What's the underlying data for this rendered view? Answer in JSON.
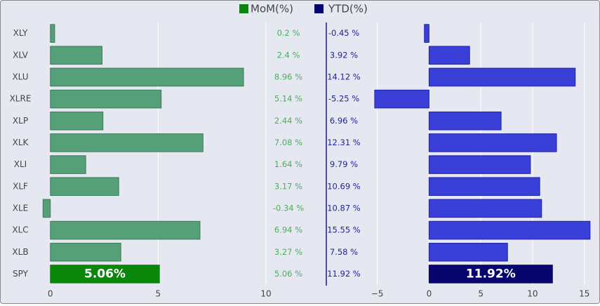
{
  "chart_data": {
    "type": "bar",
    "orientation": "horizontal",
    "categories": [
      "SPY",
      "XLB",
      "XLC",
      "XLE",
      "XLF",
      "XLI",
      "XLK",
      "XLP",
      "XLRE",
      "XLU",
      "XLV",
      "XLY"
    ],
    "series": [
      {
        "name": "MoM(%)",
        "values": [
          5.06,
          3.27,
          6.94,
          -0.34,
          3.17,
          1.64,
          7.08,
          2.44,
          5.14,
          8.96,
          2.4,
          0.2
        ],
        "labels": [
          "5.06 %",
          "3.27 %",
          "6.94 %",
          "-0.34 %",
          "3.17 %",
          "1.64 %",
          "7.08 %",
          "2.44 %",
          "5.14 %",
          "8.96 %",
          "2.4 %",
          "0.2 %"
        ],
        "color": "#55a079",
        "highlight_color": "#0a860a",
        "highlight_label": "5.06%",
        "xlim": [
          -0.35,
          10
        ],
        "ticks": [
          "0",
          "5",
          "10"
        ],
        "tick_values": [
          0,
          5,
          10
        ]
      },
      {
        "name": "YTD(%)",
        "values": [
          11.92,
          7.58,
          15.55,
          10.87,
          10.69,
          9.79,
          12.31,
          6.96,
          -5.25,
          14.12,
          3.92,
          -0.45
        ],
        "labels": [
          "11.92 %",
          "7.58 %",
          "15.55 %",
          "10.87 %",
          "10.69 %",
          "9.79 %",
          "12.31 %",
          "6.96 %",
          "-5.25 %",
          "14.12 %",
          "3.92 %",
          "-0.45 %"
        ],
        "color": "#3a3fd8",
        "highlight_color": "#07066e",
        "highlight_label": "11.92%",
        "xlim": [
          -6.6,
          15.9
        ],
        "ticks": [
          "−5",
          "0",
          "5",
          "10",
          "15"
        ],
        "tick_values": [
          -5,
          0,
          5,
          10,
          15
        ]
      }
    ],
    "highlight_category": "SPY",
    "legend": {
      "position": "top-center",
      "entries": [
        {
          "name": "MoM(%)",
          "color": "#0a860a"
        },
        {
          "name": "YTD(%)",
          "color": "#07066e"
        }
      ]
    },
    "grid": true
  }
}
